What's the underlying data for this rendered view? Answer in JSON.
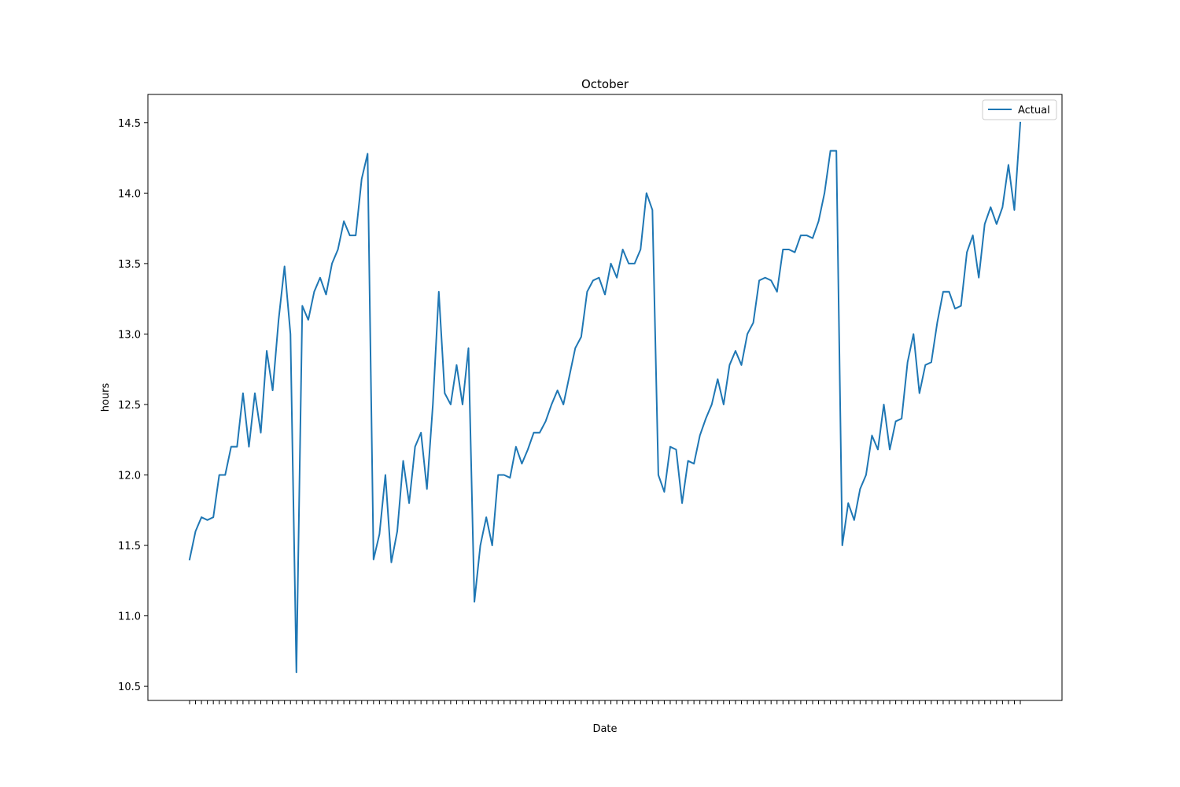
{
  "chart_data": {
    "type": "line",
    "title": "October",
    "xlabel": "Date",
    "ylabel": "hours",
    "ylim": [
      10.4,
      14.7
    ],
    "yticks": [
      10.5,
      11.0,
      11.5,
      12.0,
      12.5,
      13.0,
      13.5,
      14.0,
      14.5
    ],
    "ytick_labels": [
      "10.5",
      "11.0",
      "11.5",
      "12.0",
      "12.5",
      "13.0",
      "13.5",
      "14.0",
      "14.5"
    ],
    "legend": "top-right",
    "grid": false,
    "color": "#1f77b4",
    "series": [
      {
        "name": "Actual",
        "values": [
          11.4,
          11.6,
          11.7,
          11.68,
          11.7,
          12.0,
          12.0,
          12.2,
          12.2,
          12.58,
          12.2,
          12.58,
          12.3,
          12.88,
          12.6,
          13.1,
          13.48,
          13.0,
          10.6,
          13.2,
          13.1,
          13.3,
          13.4,
          13.28,
          13.5,
          13.6,
          13.8,
          13.7,
          13.7,
          14.1,
          14.28,
          11.4,
          11.58,
          12.0,
          11.38,
          11.6,
          12.1,
          11.8,
          12.2,
          12.3,
          11.9,
          12.5,
          13.3,
          12.58,
          12.5,
          12.78,
          12.5,
          12.9,
          11.1,
          11.5,
          11.7,
          11.5,
          12.0,
          12.0,
          11.98,
          12.2,
          12.08,
          12.18,
          12.3,
          12.3,
          12.38,
          12.5,
          12.6,
          12.5,
          12.7,
          12.9,
          12.98,
          13.3,
          13.38,
          13.4,
          13.28,
          13.5,
          13.4,
          13.6,
          13.5,
          13.5,
          13.6,
          14.0,
          13.88,
          12.0,
          11.88,
          12.2,
          12.18,
          11.8,
          12.1,
          12.08,
          12.28,
          12.4,
          12.5,
          12.68,
          12.5,
          12.78,
          12.88,
          12.78,
          13.0,
          13.08,
          13.38,
          13.4,
          13.38,
          13.3,
          13.6,
          13.6,
          13.58,
          13.7,
          13.7,
          13.68,
          13.8,
          14.0,
          14.3,
          14.3,
          11.5,
          11.8,
          11.68,
          11.9,
          12.0,
          12.28,
          12.18,
          12.5,
          12.18,
          12.38,
          12.4,
          12.8,
          13.0,
          12.58,
          12.78,
          12.8,
          13.08,
          13.3,
          13.3,
          13.18,
          13.2,
          13.58,
          13.7,
          13.4,
          13.78,
          13.9,
          13.78,
          13.9,
          14.2,
          13.88,
          14.5
        ]
      }
    ]
  }
}
